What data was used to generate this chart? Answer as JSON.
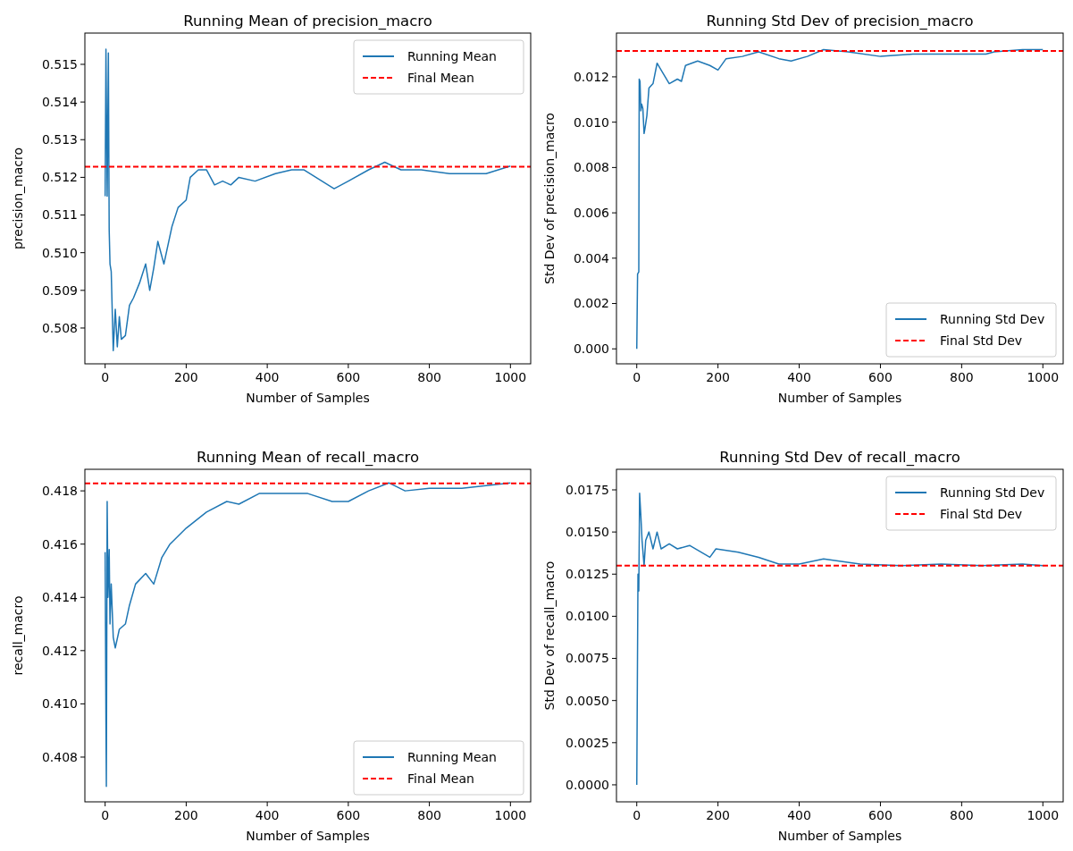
{
  "chart_data": [
    {
      "type": "line",
      "title": "Running Mean of precision_macro",
      "xlabel": "Number of Samples",
      "ylabel": "precision_macro",
      "xlim": [
        -50,
        1050
      ],
      "xticks": [
        0,
        200,
        400,
        600,
        800,
        1000
      ],
      "ylim": [
        0.50705,
        0.51583
      ],
      "yticks": [
        0.508,
        0.509,
        {
          "value": 0.51,
          "label": "0.510"
        },
        0.511,
        0.512,
        0.513,
        0.514,
        0.515
      ],
      "legend": "top right",
      "grid": false,
      "series": [
        {
          "name": "Running Mean",
          "color": "#1f77b4",
          "x": [
            0,
            2,
            5,
            8,
            10,
            12,
            15,
            20,
            25,
            30,
            35,
            40,
            50,
            60,
            70,
            85,
            100,
            110,
            120,
            130,
            145,
            165,
            180,
            200,
            210,
            230,
            250,
            270,
            290,
            310,
            330,
            370,
            420,
            460,
            490,
            520,
            565,
            600,
            650,
            690,
            710,
            730,
            780,
            850,
            900,
            940,
            1000
          ],
          "values": [
            0.5115,
            0.5154,
            0.5115,
            0.5153,
            0.5106,
            0.5097,
            0.5095,
            0.5074,
            0.5085,
            0.5075,
            0.5083,
            0.5077,
            0.5078,
            0.5086,
            0.5088,
            0.5092,
            0.5097,
            0.509,
            0.5096,
            0.5103,
            0.5097,
            0.5107,
            0.5112,
            0.5114,
            0.512,
            0.5122,
            0.5122,
            0.5118,
            0.5119,
            0.5118,
            0.512,
            0.5119,
            0.5121,
            0.5122,
            0.5122,
            0.512,
            0.5117,
            0.5119,
            0.5122,
            0.5124,
            0.5123,
            0.5122,
            0.5122,
            0.5121,
            0.5121,
            0.5121,
            0.5123
          ]
        }
      ],
      "ref_lines": [
        {
          "axis": "y",
          "value": 0.51228,
          "label": "Final Mean",
          "color": "#ff0000",
          "line_style": "dashed"
        }
      ]
    },
    {
      "type": "line",
      "title": "Running Std Dev of precision_macro",
      "xlabel": "Number of Samples",
      "ylabel": "Std Dev of precision_macro",
      "xlim": [
        -50,
        1050
      ],
      "xticks": [
        0,
        200,
        400,
        600,
        800,
        1000
      ],
      "ylim": [
        -0.00066,
        0.01393
      ],
      "yticks": [
        {
          "value": 0,
          "label": "0.000"
        },
        {
          "value": 0.002,
          "label": "0.002"
        },
        {
          "value": 0.004,
          "label": "0.004"
        },
        {
          "value": 0.006,
          "label": "0.006"
        },
        {
          "value": 0.008,
          "label": "0.008"
        },
        {
          "value": 0.01,
          "label": "0.010"
        },
        {
          "value": 0.012,
          "label": "0.012"
        }
      ],
      "legend": "bottom right",
      "grid": false,
      "series": [
        {
          "name": "Running Std Dev",
          "color": "#1f77b4",
          "x": [
            0,
            2,
            5,
            6,
            8,
            10,
            12,
            15,
            18,
            20,
            25,
            30,
            40,
            50,
            60,
            80,
            100,
            110,
            120,
            150,
            180,
            200,
            220,
            260,
            300,
            350,
            380,
            420,
            460,
            520,
            600,
            680,
            780,
            860,
            880,
            950,
            1000
          ],
          "values": [
            0,
            0.0033,
            0.0034,
            0.0119,
            0.0118,
            0.0105,
            0.0108,
            0.0106,
            0.0095,
            0.0097,
            0.0103,
            0.0115,
            0.0117,
            0.0126,
            0.0123,
            0.0117,
            0.0119,
            0.0118,
            0.0125,
            0.0127,
            0.0125,
            0.0123,
            0.0128,
            0.0129,
            0.0131,
            0.0128,
            0.0127,
            0.0129,
            0.0132,
            0.0131,
            0.0129,
            0.013,
            0.013,
            0.013,
            0.0131,
            0.0132,
            0.0132
          ]
        }
      ],
      "ref_lines": [
        {
          "axis": "y",
          "value": 0.01314,
          "label": "Final Std Dev",
          "color": "#ff0000",
          "line_style": "dashed"
        }
      ]
    },
    {
      "type": "line",
      "title": "Running Mean of recall_macro",
      "xlabel": "Number of Samples",
      "ylabel": "recall_macro",
      "xlim": [
        -50,
        1050
      ],
      "xticks": [
        0,
        200,
        400,
        600,
        800,
        1000
      ],
      "ylim": [
        0.40632,
        0.41881
      ],
      "yticks": [
        0.408,
        {
          "value": 0.41,
          "label": "0.410"
        },
        0.412,
        0.414,
        0.416,
        0.418
      ],
      "legend": "bottom right",
      "grid": false,
      "series": [
        {
          "name": "Running Mean",
          "color": "#1f77b4",
          "x": [
            0,
            2,
            3,
            5,
            7,
            10,
            12,
            15,
            20,
            25,
            35,
            50,
            60,
            75,
            100,
            120,
            140,
            160,
            200,
            250,
            300,
            330,
            380,
            450,
            500,
            560,
            600,
            650,
            700,
            740,
            800,
            880,
            1000
          ],
          "values": [
            0.4157,
            0.4093,
            0.4069,
            0.4176,
            0.414,
            0.4158,
            0.413,
            0.4145,
            0.4125,
            0.4121,
            0.4128,
            0.413,
            0.4137,
            0.4145,
            0.4149,
            0.4145,
            0.4155,
            0.416,
            0.4166,
            0.4172,
            0.4176,
            0.4175,
            0.4179,
            0.4179,
            0.4179,
            0.4176,
            0.4176,
            0.418,
            0.4183,
            0.418,
            0.4181,
            0.4181,
            0.4183
          ]
        }
      ],
      "ref_lines": [
        {
          "axis": "y",
          "value": 0.41828,
          "label": "Final Mean",
          "color": "#ff0000",
          "line_style": "dashed"
        }
      ]
    },
    {
      "type": "line",
      "title": "Running Std Dev of recall_macro",
      "xlabel": "Number of Samples",
      "ylabel": "Std Dev of recall_macro",
      "xlim": [
        -50,
        1050
      ],
      "xticks": [
        0,
        200,
        400,
        600,
        800,
        1000
      ],
      "ylim": [
        -0.00101,
        0.01872
      ],
      "yticks": [
        {
          "value": 0,
          "label": "0.0000"
        },
        {
          "value": 0.0025,
          "label": "0.0025"
        },
        {
          "value": 0.005,
          "label": "0.0050"
        },
        {
          "value": 0.0075,
          "label": "0.0075"
        },
        {
          "value": 0.01,
          "label": "0.0100"
        },
        {
          "value": 0.0125,
          "label": "0.0125"
        },
        {
          "value": 0.015,
          "label": "0.0150"
        },
        {
          "value": 0.0175,
          "label": "0.0175"
        }
      ],
      "legend": "top right",
      "grid": false,
      "series": [
        {
          "name": "Running Std Dev",
          "color": "#1f77b4",
          "x": [
            0,
            3,
            5,
            7,
            10,
            13,
            18,
            22,
            30,
            40,
            50,
            60,
            80,
            100,
            130,
            180,
            195,
            250,
            300,
            350,
            400,
            460,
            550,
            650,
            750,
            850,
            950,
            1000
          ],
          "values": [
            0,
            0.0125,
            0.0115,
            0.0173,
            0.016,
            0.0145,
            0.013,
            0.0145,
            0.015,
            0.014,
            0.015,
            0.014,
            0.0143,
            0.014,
            0.0142,
            0.0135,
            0.014,
            0.0138,
            0.0135,
            0.0131,
            0.0131,
            0.0134,
            0.0131,
            0.013,
            0.0131,
            0.013,
            0.0131,
            0.013
          ]
        }
      ],
      "ref_lines": [
        {
          "axis": "y",
          "value": 0.013,
          "label": "Final Std Dev",
          "color": "#ff0000",
          "line_style": "dashed"
        }
      ]
    }
  ]
}
